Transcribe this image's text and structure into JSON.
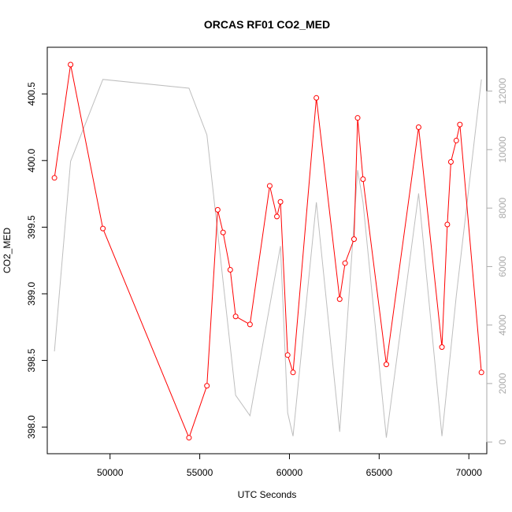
{
  "chart_data": {
    "type": "line",
    "title": "ORCAS RF01 CO2_MED",
    "xlabel": "UTC Seconds",
    "ylabel": "CO2_MED",
    "xlim": [
      46500,
      71000
    ],
    "ylim": [
      397.8,
      400.85
    ],
    "y2lim": [
      -400,
      13500
    ],
    "x_ticks": [
      50000,
      55000,
      60000,
      65000,
      70000
    ],
    "y_ticks": [
      398.0,
      398.5,
      399.0,
      399.5,
      400.0,
      400.5
    ],
    "y_tick_labels": [
      "398.0",
      "398.5",
      "399.0",
      "399.5",
      "400.0",
      "400.5"
    ],
    "y2_ticks": [
      0,
      2000,
      4000,
      6000,
      8000,
      10000,
      12000
    ],
    "colors": {
      "co2": "#ff0000",
      "altitude": "#bebebe",
      "right_axis": "#aaaaaa"
    },
    "series": [
      {
        "name": "",
        "axis": "left",
        "style": "line+circles",
        "x": [
          46900,
          47800,
          49600,
          54400,
          55400,
          56000,
          56300,
          56700,
          57000,
          57800,
          58900,
          59300,
          59500,
          59900,
          60200,
          61500,
          62800,
          63100,
          63600,
          63800,
          64100,
          65400,
          67200,
          68500,
          68800,
          69000,
          69300,
          69500,
          70700
        ],
        "y": [
          399.87,
          400.72,
          399.49,
          397.92,
          398.31,
          399.63,
          399.46,
          399.18,
          398.83,
          398.77,
          399.81,
          399.58,
          399.69,
          398.54,
          398.41,
          400.47,
          398.96,
          399.23,
          399.41,
          400.32,
          399.86,
          398.47,
          400.25,
          398.6,
          399.52,
          399.99,
          400.15,
          400.27,
          398.41
        ]
      },
      {
        "name": "",
        "axis": "right",
        "style": "line",
        "x": [
          46900,
          47800,
          49600,
          54400,
          55400,
          57000,
          57800,
          59500,
          59900,
          60200,
          61500,
          62800,
          63800,
          64100,
          65400,
          67200,
          68500,
          69300,
          70700
        ],
        "y": [
          3100,
          9600,
          12400,
          12100,
          10500,
          1600,
          900,
          6700,
          1000,
          200,
          8200,
          350,
          9300,
          8200,
          150,
          8500,
          200,
          5000,
          12400
        ]
      }
    ]
  }
}
